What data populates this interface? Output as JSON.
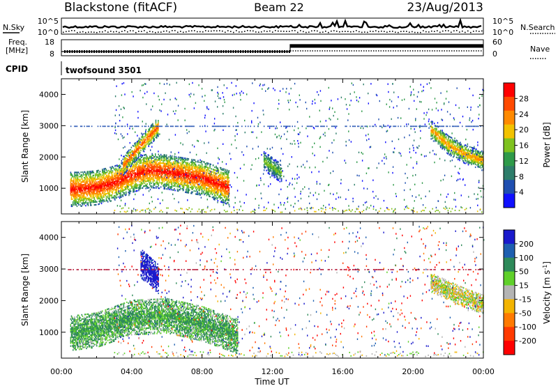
{
  "header": {
    "title": "Blackstone (fitACF)",
    "beam": "Beam 22",
    "date": "23/Aug/2013"
  },
  "noise_panel": {
    "left_label": "N.Sky",
    "right_label": "N.Search",
    "left_ticks": [
      "10^5",
      "10^0"
    ],
    "right_ticks": [
      "10^5",
      "10^0"
    ]
  },
  "freq_panel": {
    "left_label_line1": "Freq.",
    "left_label_line2": "[MHz]",
    "left_ticks": [
      "18",
      "8"
    ],
    "right_label": "Nave",
    "right_ticks": [
      "60",
      "0"
    ]
  },
  "cpid": {
    "label": "CPID",
    "value": "twofsound 3501"
  },
  "colorbar_power": {
    "label": "Power [dB]",
    "ticks": [
      "28",
      "24",
      "20",
      "16",
      "12",
      "8",
      "4"
    ],
    "colors": [
      "#ff0000",
      "#ff4a00",
      "#ff8a00",
      "#f2c200",
      "#7fc21f",
      "#2f9a4a",
      "#2e7d6a",
      "#1f4fb0",
      "#1010ff"
    ]
  },
  "colorbar_velocity": {
    "label": "Velocity [m s^-1]",
    "ticks": [
      "200",
      "100",
      "50",
      "15",
      "-15",
      "-50",
      "-100",
      "-200"
    ],
    "colors": [
      "#1a1acc",
      "#1e5fb0",
      "#2e8a5a",
      "#5fd02a",
      "#b4b4b4",
      "#f3b400",
      "#ff7a00",
      "#ff3a00",
      "#ff0000"
    ]
  },
  "chart_data": [
    {
      "type": "heatmap",
      "title": "Power",
      "xlabel": "Time UT",
      "ylabel": "Slant Range [km]",
      "xticks": [
        "00:00",
        "04:00",
        "08:00",
        "12:00",
        "16:00",
        "20:00",
        "00:00"
      ],
      "yticks": [
        "1000",
        "2000",
        "3000",
        "4000"
      ],
      "xlim_hours": [
        0,
        24
      ],
      "ylim_km": [
        180,
        4500
      ],
      "features": [
        {
          "name": "main_band",
          "t": [
            0.5,
            1.0,
            2.0,
            3.0,
            4.0,
            5.0,
            6.0,
            7.0,
            8.0,
            9.0,
            9.5
          ],
          "range_km": [
            1000,
            1000,
            1050,
            1200,
            1450,
            1600,
            1550,
            1450,
            1350,
            1150,
            1050
          ],
          "power_db": 28
        },
        {
          "name": "upper_band",
          "t": [
            3.5,
            4.5,
            5.5
          ],
          "range_km": [
            1750,
            2400,
            3000
          ],
          "power_db": 24
        },
        {
          "name": "midday_patch",
          "t": [
            11.5,
            12.5
          ],
          "range_km": [
            1900,
            1500
          ],
          "power_db": 12
        },
        {
          "name": "evening_band",
          "t": [
            21.0,
            22.0,
            23.0,
            24.0
          ],
          "range_km": [
            2900,
            2400,
            2100,
            1900
          ],
          "power_db": 20
        }
      ]
    },
    {
      "type": "heatmap",
      "title": "Velocity",
      "xlabel": "Time UT",
      "ylabel": "Slant Range [km]",
      "xticks": [
        "00:00",
        "04:00",
        "08:00",
        "12:00",
        "16:00",
        "20:00",
        "00:00"
      ],
      "yticks": [
        "1000",
        "2000",
        "3000",
        "4000"
      ],
      "xlim_hours": [
        0,
        24
      ],
      "ylim_km": [
        180,
        4500
      ],
      "features": [
        {
          "name": "main_band",
          "t": [
            0.5,
            2.0,
            4.0,
            6.0,
            8.0,
            10.0
          ],
          "range_km": [
            1000,
            1100,
            1500,
            1550,
            1300,
            900
          ],
          "velocity_ms": 40
        },
        {
          "name": "blue_patch",
          "t": [
            4.5,
            5.5
          ],
          "range_km": [
            3200,
            2700
          ],
          "velocity_ms": 220
        },
        {
          "name": "evening_grey",
          "t": [
            21.0,
            23.0,
            24.0
          ],
          "range_km": [
            2600,
            2100,
            1900
          ],
          "velocity_ms": 0
        }
      ]
    }
  ]
}
